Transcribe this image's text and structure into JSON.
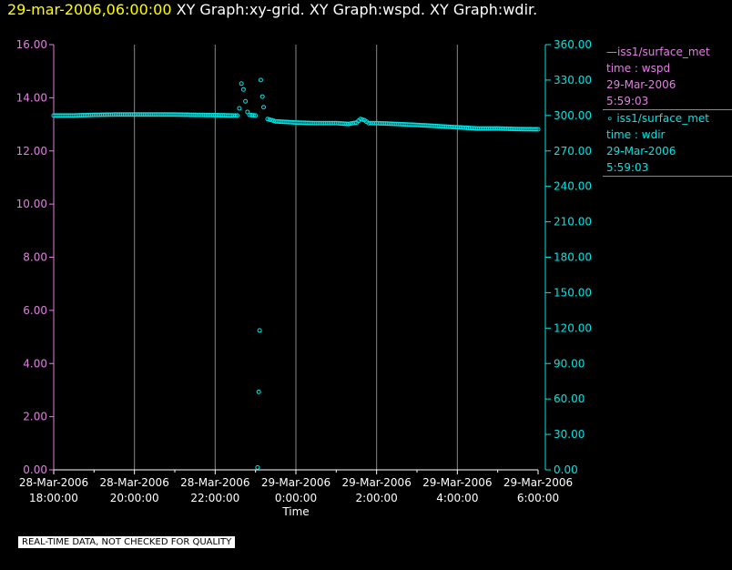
{
  "header": {
    "timestamp": "29-mar-2006,06:00:00",
    "graphs": "XY Graph:xy-grid.  XY Graph:wspd.  XY Graph:wdir."
  },
  "legend": {
    "wspd": {
      "line1": "—iss1/surface_met",
      "line2": "time : wspd",
      "line3": "29-Mar-2006",
      "line4": "5:59:03"
    },
    "wdir": {
      "line1": "iss1/surface_met",
      "line2": "time : wdir",
      "line3": "29-Mar-2006",
      "line4": "5:59:03"
    }
  },
  "footer": {
    "disclaimer": "REAL-TIME DATA, NOT CHECKED FOR QUALITY"
  },
  "colors": {
    "wspd": "#e080e0",
    "wdir": "#00e5e5",
    "title_timestamp": "#ffff00",
    "grid": "#888888"
  },
  "chart_data": {
    "type": "scatter",
    "xlabel": "Time",
    "x_ticks": [
      {
        "d": "28-Mar-2006",
        "t": "18:00:00",
        "h": 18
      },
      {
        "d": "28-Mar-2006",
        "t": "20:00:00",
        "h": 20
      },
      {
        "d": "28-Mar-2006",
        "t": "22:00:00",
        "h": 22
      },
      {
        "d": "29-Mar-2006",
        "t": "0:00:00",
        "h": 24
      },
      {
        "d": "29-Mar-2006",
        "t": "2:00:00",
        "h": 26
      },
      {
        "d": "29-Mar-2006",
        "t": "4:00:00",
        "h": 28
      },
      {
        "d": "29-Mar-2006",
        "t": "6:00:00",
        "h": 30
      }
    ],
    "xlim": [
      18,
      30
    ],
    "left_axis": {
      "series": "wspd",
      "ylim": [
        0,
        16
      ],
      "ticks": [
        "0.00",
        "2.00",
        "4.00",
        "6.00",
        "8.00",
        "10.00",
        "12.00",
        "14.00",
        "16.00"
      ]
    },
    "right_axis": {
      "series": "wdir",
      "ylim": [
        0,
        360
      ],
      "ticks": [
        "0.00",
        "30.00",
        "60.00",
        "90.00",
        "120.00",
        "150.00",
        "180.00",
        "210.00",
        "240.00",
        "270.00",
        "300.00",
        "330.00",
        "360.00"
      ]
    },
    "grid": "vertical",
    "legend_position": "right",
    "series": [
      {
        "name": "wdir",
        "axis": "right",
        "x": [
          18.0,
          18.5,
          19.0,
          19.5,
          20.0,
          20.5,
          21.0,
          21.5,
          22.0,
          22.4,
          22.55,
          22.6,
          22.65,
          22.7,
          22.75,
          22.8,
          22.85,
          22.9,
          23.0,
          23.05,
          23.08,
          23.1,
          23.13,
          23.17,
          23.2,
          23.3,
          23.5,
          24.0,
          24.5,
          25.0,
          25.3,
          25.5,
          25.6,
          25.7,
          25.8,
          26.0,
          26.5,
          27.0,
          27.5,
          28.0,
          28.5,
          29.0,
          29.5,
          30.0
        ],
        "y": [
          300.0,
          300.0,
          300.5,
          300.8,
          300.8,
          300.8,
          300.8,
          300.5,
          300.3,
          300.0,
          300.0,
          306,
          327,
          322,
          312,
          303,
          300.5,
          300.3,
          300,
          2,
          66,
          118,
          330,
          316,
          307,
          297,
          295,
          294,
          293.5,
          293.5,
          292.8,
          294,
          297,
          296,
          293.5,
          293.5,
          292.8,
          292,
          291,
          290,
          289,
          289,
          288.5,
          288.3
        ]
      }
    ]
  }
}
